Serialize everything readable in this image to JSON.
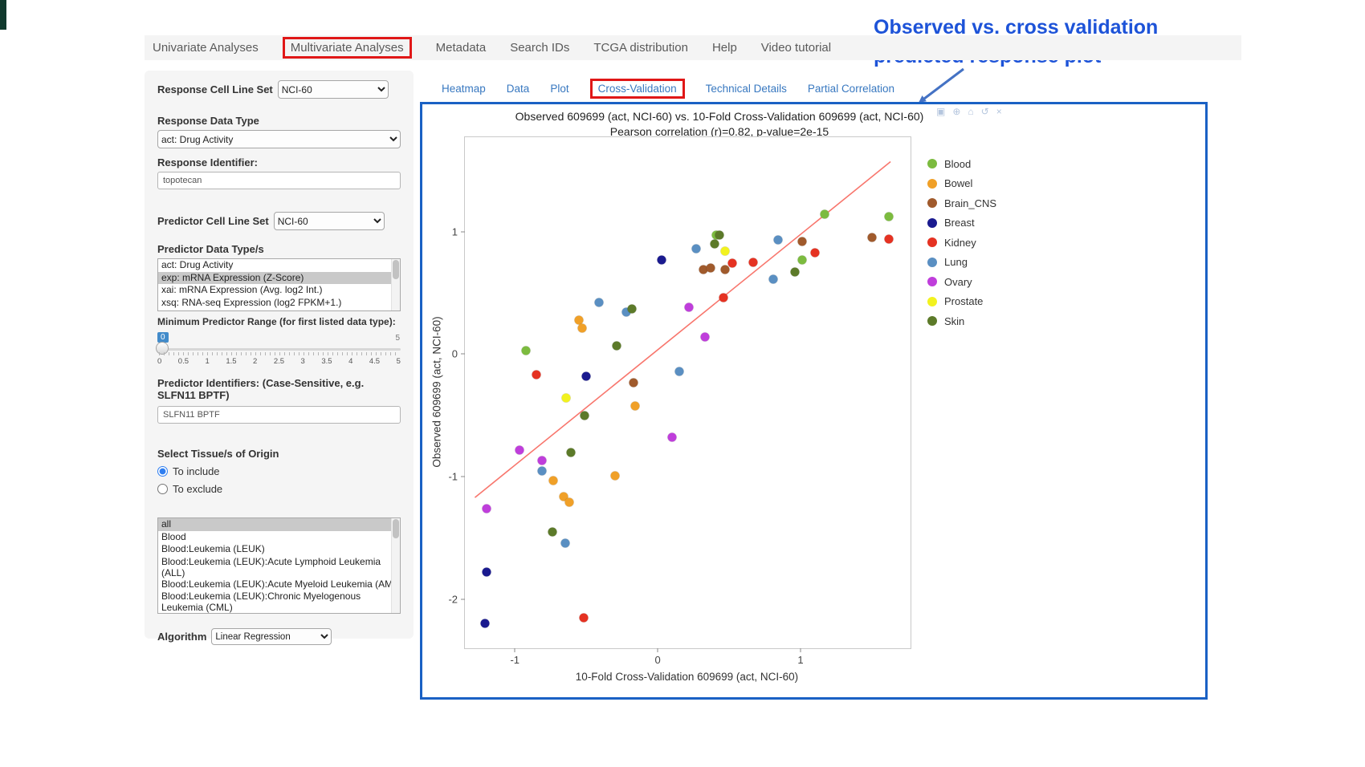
{
  "ui_colors": {
    "highlight_red": "#e01717",
    "plot_box_blue": "#1a61c4",
    "subtab_blue": "#3878c0",
    "annotation_blue": "#1d53d8",
    "slider_badge_blue": "#428bca",
    "selection_gray": "#c9c9c9",
    "edge_dark": "#10392d",
    "arrow_blue": "#4472c4"
  },
  "annotation": {
    "line1": "Observed vs. cross validation",
    "line2": "predicted response plot"
  },
  "nav": {
    "tabs": [
      {
        "label": "Univariate Analyses"
      },
      {
        "label": "Multivariate Analyses",
        "highlighted": true
      },
      {
        "label": "Metadata"
      },
      {
        "label": "Search IDs"
      },
      {
        "label": "TCGA distribution"
      },
      {
        "label": "Help"
      },
      {
        "label": "Video tutorial"
      }
    ]
  },
  "subtabs": [
    {
      "label": "Heatmap"
    },
    {
      "label": "Data"
    },
    {
      "label": "Plot"
    },
    {
      "label": "Cross-Validation",
      "highlighted": true
    },
    {
      "label": "Technical Details"
    },
    {
      "label": "Partial Correlation"
    }
  ],
  "sidebar": {
    "response_cell_line_set": {
      "label": "Response Cell Line Set",
      "value": "NCI-60"
    },
    "response_data_type": {
      "label": "Response Data Type",
      "value": "act: Drug Activity"
    },
    "response_identifier": {
      "label": "Response Identifier:",
      "value": "topotecan"
    },
    "predictor_cell_line_set": {
      "label": "Predictor Cell Line Set",
      "value": "NCI-60"
    },
    "predictor_data_types": {
      "label": "Predictor Data Type/s",
      "options": [
        "act: Drug Activity",
        "exp: mRNA Expression (Z-Score)",
        "xai: mRNA Expression (Avg. log2 Int.)",
        "xsq: RNA-seq Expression (log2 FPKM+1.)"
      ],
      "selected_index": 1
    },
    "min_predictor_range": {
      "label": "Minimum Predictor Range (for first listed data type):",
      "value": "0",
      "max": "5",
      "tick_labels": [
        "0",
        "0.5",
        "1",
        "1.5",
        "2",
        "2.5",
        "3",
        "3.5",
        "4",
        "4.5",
        "5"
      ]
    },
    "predictor_identifiers": {
      "label": "Predictor Identifiers: (Case-Sensitive, e.g. SLFN11 BPTF)",
      "value": "SLFN11 BPTF"
    },
    "tissue": {
      "label": "Select Tissue/s of Origin",
      "include_label": "To include",
      "exclude_label": "To exclude",
      "options": [
        "all",
        "Blood",
        "Blood:Leukemia (LEUK)",
        "Blood:Leukemia (LEUK):Acute Lymphoid Leukemia (ALL)",
        "Blood:Leukemia (LEUK):Acute Myeloid Leukemia (AML)",
        "Blood:Leukemia (LEUK):Chronic Myelogenous Leukemia (CML)"
      ],
      "selected_index": 0
    },
    "algorithm": {
      "label": "Algorithm",
      "value": "Linear Regression"
    }
  },
  "chart_data": {
    "type": "scatter",
    "title": "Observed 609699 (act, NCI-60) vs. 10-Fold Cross-Validation 609699 (act, NCI-60)",
    "subtitle": "Pearson correlation (r)=0.82, p-value=2e-15",
    "xlabel": "10-Fold Cross-Validation 609699 (act, NCI-60)",
    "ylabel": "Observed 609699 (act, NCI-60)",
    "xlim": [
      -1.35,
      1.77
    ],
    "ylim": [
      -2.4,
      1.77
    ],
    "xticks": [
      -1,
      0,
      1
    ],
    "yticks": [
      -2,
      -1,
      0,
      1
    ],
    "grid": false,
    "legend_position": "right",
    "regression_line": {
      "x1": -1.28,
      "y1": -1.17,
      "x2": 1.63,
      "y2": 1.57,
      "color": "#f8766d"
    },
    "series": [
      {
        "name": "Blood",
        "color": "#7cbb3f",
        "points": [
          [
            -0.92,
            0.03
          ],
          [
            0.41,
            0.97
          ],
          [
            1.01,
            0.77
          ],
          [
            1.17,
            1.14
          ],
          [
            1.62,
            1.12
          ]
        ]
      },
      {
        "name": "Bowel",
        "color": "#f0a028",
        "points": [
          [
            -0.55,
            0.28
          ],
          [
            -0.53,
            0.21
          ],
          [
            -0.16,
            -0.42
          ],
          [
            -0.3,
            -0.99
          ],
          [
            -0.73,
            -1.03
          ],
          [
            -0.66,
            -1.16
          ],
          [
            -0.62,
            -1.21
          ]
        ]
      },
      {
        "name": "Brain_CNS",
        "color": "#a05a2c",
        "points": [
          [
            0.32,
            0.69
          ],
          [
            0.37,
            0.7
          ],
          [
            0.47,
            0.69
          ],
          [
            1.01,
            0.92
          ],
          [
            1.5,
            0.95
          ],
          [
            -0.17,
            -0.23
          ]
        ]
      },
      {
        "name": "Breast",
        "color": "#1a1a8f",
        "points": [
          [
            0.03,
            0.77
          ],
          [
            -0.5,
            -0.18
          ],
          [
            -1.2,
            -1.78
          ],
          [
            -1.21,
            -2.2
          ]
        ]
      },
      {
        "name": "Kidney",
        "color": "#e53222",
        "points": [
          [
            1.62,
            0.94
          ],
          [
            1.1,
            0.83
          ],
          [
            0.67,
            0.75
          ],
          [
            0.52,
            0.74
          ],
          [
            0.46,
            0.46
          ],
          [
            -0.85,
            -0.17
          ],
          [
            -0.52,
            -2.15
          ]
        ]
      },
      {
        "name": "Lung",
        "color": "#5a8fc2",
        "points": [
          [
            0.84,
            0.93
          ],
          [
            0.81,
            0.61
          ],
          [
            0.27,
            0.86
          ],
          [
            -0.41,
            0.42
          ],
          [
            -0.22,
            0.34
          ],
          [
            0.15,
            -0.14
          ],
          [
            -0.81,
            -0.95
          ],
          [
            -0.65,
            -1.54
          ]
        ]
      },
      {
        "name": "Ovary",
        "color": "#bf3edb",
        "points": [
          [
            0.22,
            0.38
          ],
          [
            0.33,
            0.14
          ],
          [
            0.1,
            -0.68
          ],
          [
            -0.97,
            -0.78
          ],
          [
            -0.81,
            -0.87
          ],
          [
            -1.2,
            -1.26
          ]
        ]
      },
      {
        "name": "Prostate",
        "color": "#f2f21f",
        "points": [
          [
            0.47,
            0.84
          ],
          [
            -0.64,
            -0.36
          ]
        ]
      },
      {
        "name": "Skin",
        "color": "#5c7a29",
        "points": [
          [
            0.4,
            0.9
          ],
          [
            0.43,
            0.97
          ],
          [
            0.96,
            0.67
          ],
          [
            -0.18,
            0.37
          ],
          [
            -0.29,
            0.07
          ],
          [
            -0.51,
            -0.5
          ],
          [
            -0.61,
            -0.8
          ],
          [
            -0.74,
            -1.45
          ]
        ]
      }
    ]
  }
}
